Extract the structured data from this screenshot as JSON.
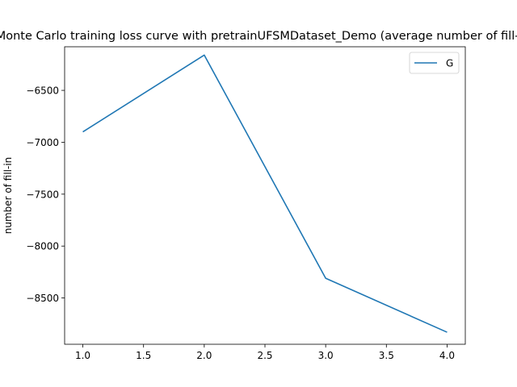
{
  "chart_data": {
    "type": "line",
    "title": "Monte Carlo training loss curve with pretrainUFSMDataset_Demo (average number of fill-in)",
    "xlabel": "",
    "ylabel": "number of fill-in",
    "xlim": [
      0.85,
      4.15
    ],
    "ylim": [
      -8946,
      -6080
    ],
    "xticks": [
      1.0,
      1.5,
      2.0,
      2.5,
      3.0,
      3.5,
      4.0
    ],
    "xtick_labels": [
      "1.0",
      "1.5",
      "2.0",
      "2.5",
      "3.0",
      "3.5",
      "4.0"
    ],
    "yticks": [
      -8500,
      -8000,
      -7500,
      -7000,
      -6500
    ],
    "ytick_labels": [
      "−8500",
      "−8000",
      "−7500",
      "−7000",
      "−6500"
    ],
    "grid": false,
    "legend_position": "top-right",
    "series": [
      {
        "name": "G",
        "color": "#1f77b4",
        "x": [
          1.0,
          2.0,
          3.0,
          4.0
        ],
        "y": [
          -6900,
          -6160,
          -8310,
          -8830
        ]
      }
    ]
  }
}
